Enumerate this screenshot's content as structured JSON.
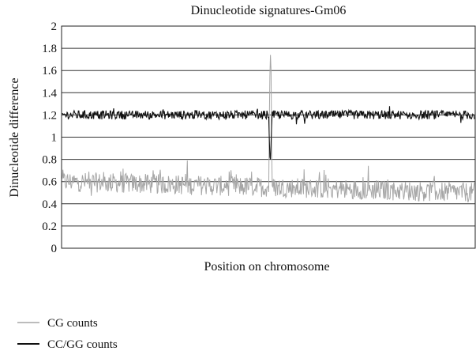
{
  "chart_data": {
    "type": "line",
    "title": "Dinucleotide signatures-Gm06",
    "xlabel": "Position on chromosome",
    "ylabel": "Dinucleotide difference",
    "ylim": [
      0,
      2
    ],
    "yticks": [
      "0",
      "0.2",
      "0.4",
      "0.6",
      "0.8",
      "1",
      "1.2",
      "1.4",
      "1.6",
      "1.8",
      "2"
    ],
    "grid": true,
    "legend_position": "bottom-left",
    "x_points": 700,
    "series": [
      {
        "name": "CG counts",
        "color": "#a6a6a6",
        "baseline_start": 0.6,
        "baseline_end": 0.5,
        "noise": 0.09,
        "spike": {
          "position": 0.505,
          "values": [
            1.1,
            1.55,
            1.74,
            1.6,
            0.9
          ]
        }
      },
      {
        "name": "CC/GG counts",
        "color": "#111111",
        "baseline": 1.2,
        "noise": 0.04,
        "dip": {
          "position": 0.505,
          "values": [
            1.0,
            0.82,
            0.8,
            0.95,
            1.1
          ]
        }
      }
    ]
  }
}
